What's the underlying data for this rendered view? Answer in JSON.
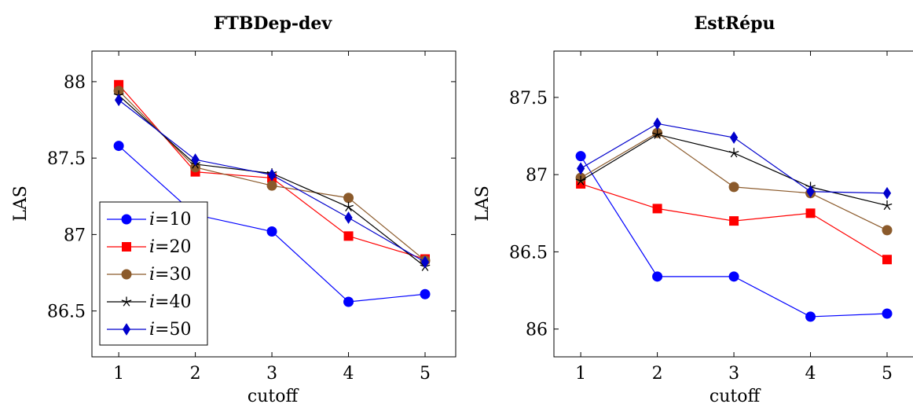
{
  "chart_data": [
    {
      "type": "line",
      "title": "FTBDep-dev",
      "xlabel": "cutoff",
      "ylabel": "LAS",
      "x": [
        1,
        2,
        3,
        4,
        5
      ],
      "xticks": [
        "1",
        "2",
        "3",
        "4",
        "5"
      ],
      "yticks": [
        "86.5",
        "87",
        "87.5",
        "88"
      ],
      "ytick_values": [
        86.5,
        87,
        87.5,
        88
      ],
      "xlim": [
        0.65,
        5.4
      ],
      "ylim": [
        86.2,
        88.2
      ],
      "legend_position": "bottom-left",
      "series": [
        {
          "name": "i=10",
          "prefix": "i",
          "suffix": "=10",
          "color": "#0000ff",
          "marker": "circle",
          "values": [
            87.58,
            87.13,
            87.02,
            86.56,
            86.61
          ]
        },
        {
          "name": "i=20",
          "prefix": "i",
          "suffix": "=20",
          "color": "#ff0000",
          "marker": "square",
          "values": [
            87.98,
            87.41,
            87.37,
            86.99,
            86.84
          ]
        },
        {
          "name": "i=30",
          "prefix": "i",
          "suffix": "=30",
          "color": "#8b5a2b",
          "marker": "circle",
          "values": [
            87.94,
            87.44,
            87.32,
            87.24,
            86.83
          ]
        },
        {
          "name": "i=40",
          "prefix": "i",
          "suffix": "=40",
          "color": "#000000",
          "marker": "star",
          "values": [
            87.91,
            87.46,
            87.4,
            87.18,
            86.79
          ]
        },
        {
          "name": "i=50",
          "prefix": "i",
          "suffix": "=50",
          "color": "#0000cc",
          "marker": "diamond",
          "values": [
            87.88,
            87.49,
            87.39,
            87.11,
            86.82
          ]
        }
      ]
    },
    {
      "type": "line",
      "title": "EstRépu",
      "xlabel": "cutoff",
      "ylabel": "LAS",
      "x": [
        1,
        2,
        3,
        4,
        5
      ],
      "xticks": [
        "1",
        "2",
        "3",
        "4",
        "5"
      ],
      "yticks": [
        "86",
        "86.5",
        "87",
        "87.5"
      ],
      "ytick_values": [
        86,
        86.5,
        87,
        87.5
      ],
      "xlim": [
        0.65,
        5.4
      ],
      "ylim": [
        85.82,
        87.8
      ],
      "series": [
        {
          "name": "i=10",
          "color": "#0000ff",
          "marker": "circle",
          "values": [
            87.12,
            86.34,
            86.34,
            86.08,
            86.1
          ]
        },
        {
          "name": "i=20",
          "color": "#ff0000",
          "marker": "square",
          "values": [
            86.94,
            86.78,
            86.7,
            86.75,
            86.45
          ]
        },
        {
          "name": "i=30",
          "color": "#8b5a2b",
          "marker": "circle",
          "values": [
            86.98,
            87.27,
            86.92,
            86.88,
            86.64
          ]
        },
        {
          "name": "i=40",
          "color": "#000000",
          "marker": "star",
          "values": [
            86.96,
            87.26,
            87.14,
            86.92,
            86.8
          ]
        },
        {
          "name": "i=50",
          "color": "#0000cc",
          "marker": "diamond",
          "values": [
            87.04,
            87.33,
            87.24,
            86.89,
            86.88
          ]
        }
      ]
    }
  ]
}
